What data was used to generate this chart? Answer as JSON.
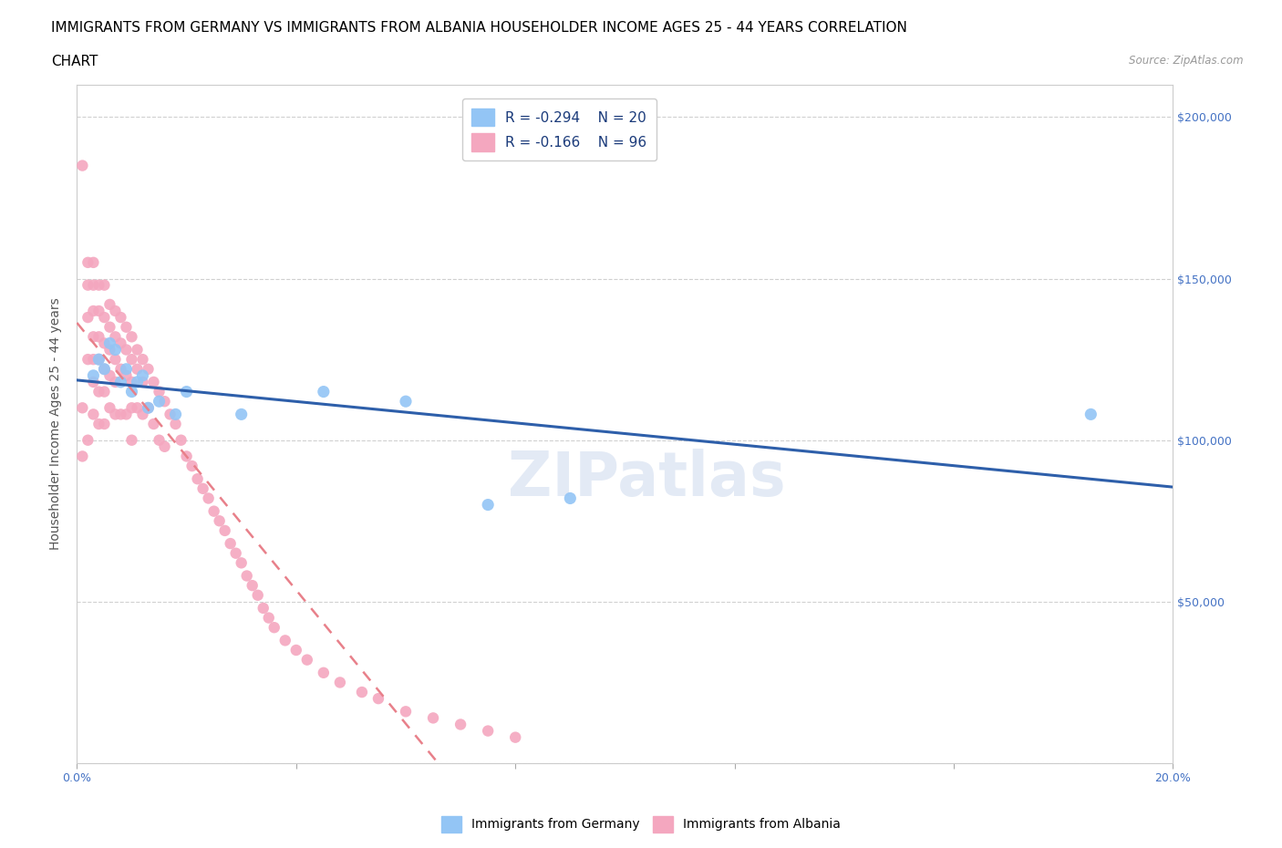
{
  "title_line1": "IMMIGRANTS FROM GERMANY VS IMMIGRANTS FROM ALBANIA HOUSEHOLDER INCOME AGES 25 - 44 YEARS CORRELATION",
  "title_line2": "CHART",
  "source": "Source: ZipAtlas.com",
  "ylabel": "Householder Income Ages 25 - 44 years",
  "xlim": [
    0.0,
    0.2
  ],
  "ylim": [
    0,
    210000
  ],
  "xticks": [
    0.0,
    0.04,
    0.08,
    0.12,
    0.16,
    0.2
  ],
  "yticks": [
    0,
    50000,
    100000,
    150000,
    200000
  ],
  "germany_color": "#93c5f5",
  "albania_color": "#f4a7bf",
  "germany_line_color": "#2e5faa",
  "albania_dash_color": "#e8808a",
  "R_germany": -0.294,
  "N_germany": 20,
  "R_albania": -0.166,
  "N_albania": 96,
  "watermark": "ZIPatlas",
  "germany_scatter_x": [
    0.003,
    0.004,
    0.005,
    0.006,
    0.007,
    0.008,
    0.009,
    0.01,
    0.011,
    0.012,
    0.013,
    0.015,
    0.018,
    0.02,
    0.03,
    0.045,
    0.06,
    0.075,
    0.09,
    0.185
  ],
  "germany_scatter_y": [
    120000,
    125000,
    122000,
    130000,
    128000,
    118000,
    122000,
    115000,
    118000,
    120000,
    110000,
    112000,
    108000,
    115000,
    108000,
    115000,
    112000,
    80000,
    82000,
    108000
  ],
  "albania_scatter_x": [
    0.001,
    0.001,
    0.001,
    0.002,
    0.002,
    0.002,
    0.002,
    0.002,
    0.003,
    0.003,
    0.003,
    0.003,
    0.003,
    0.003,
    0.003,
    0.004,
    0.004,
    0.004,
    0.004,
    0.004,
    0.004,
    0.005,
    0.005,
    0.005,
    0.005,
    0.005,
    0.005,
    0.006,
    0.006,
    0.006,
    0.006,
    0.006,
    0.007,
    0.007,
    0.007,
    0.007,
    0.007,
    0.008,
    0.008,
    0.008,
    0.008,
    0.009,
    0.009,
    0.009,
    0.009,
    0.01,
    0.01,
    0.01,
    0.01,
    0.01,
    0.011,
    0.011,
    0.011,
    0.012,
    0.012,
    0.012,
    0.013,
    0.013,
    0.014,
    0.014,
    0.015,
    0.015,
    0.016,
    0.016,
    0.017,
    0.018,
    0.019,
    0.02,
    0.021,
    0.022,
    0.023,
    0.024,
    0.025,
    0.026,
    0.027,
    0.028,
    0.029,
    0.03,
    0.031,
    0.032,
    0.033,
    0.034,
    0.035,
    0.036,
    0.038,
    0.04,
    0.042,
    0.045,
    0.048,
    0.052,
    0.055,
    0.06,
    0.065,
    0.07,
    0.075,
    0.08
  ],
  "albania_scatter_y": [
    185000,
    110000,
    95000,
    155000,
    148000,
    138000,
    125000,
    100000,
    155000,
    148000,
    140000,
    132000,
    125000,
    118000,
    108000,
    148000,
    140000,
    132000,
    125000,
    115000,
    105000,
    148000,
    138000,
    130000,
    122000,
    115000,
    105000,
    142000,
    135000,
    128000,
    120000,
    110000,
    140000,
    132000,
    125000,
    118000,
    108000,
    138000,
    130000,
    122000,
    108000,
    135000,
    128000,
    120000,
    108000,
    132000,
    125000,
    118000,
    110000,
    100000,
    128000,
    122000,
    110000,
    125000,
    118000,
    108000,
    122000,
    110000,
    118000,
    105000,
    115000,
    100000,
    112000,
    98000,
    108000,
    105000,
    100000,
    95000,
    92000,
    88000,
    85000,
    82000,
    78000,
    75000,
    72000,
    68000,
    65000,
    62000,
    58000,
    55000,
    52000,
    48000,
    45000,
    42000,
    38000,
    35000,
    32000,
    28000,
    25000,
    22000,
    20000,
    16000,
    14000,
    12000,
    10000,
    8000
  ],
  "title_fontsize": 11,
  "axis_label_fontsize": 10,
  "tick_fontsize": 9,
  "legend_fontsize": 11
}
